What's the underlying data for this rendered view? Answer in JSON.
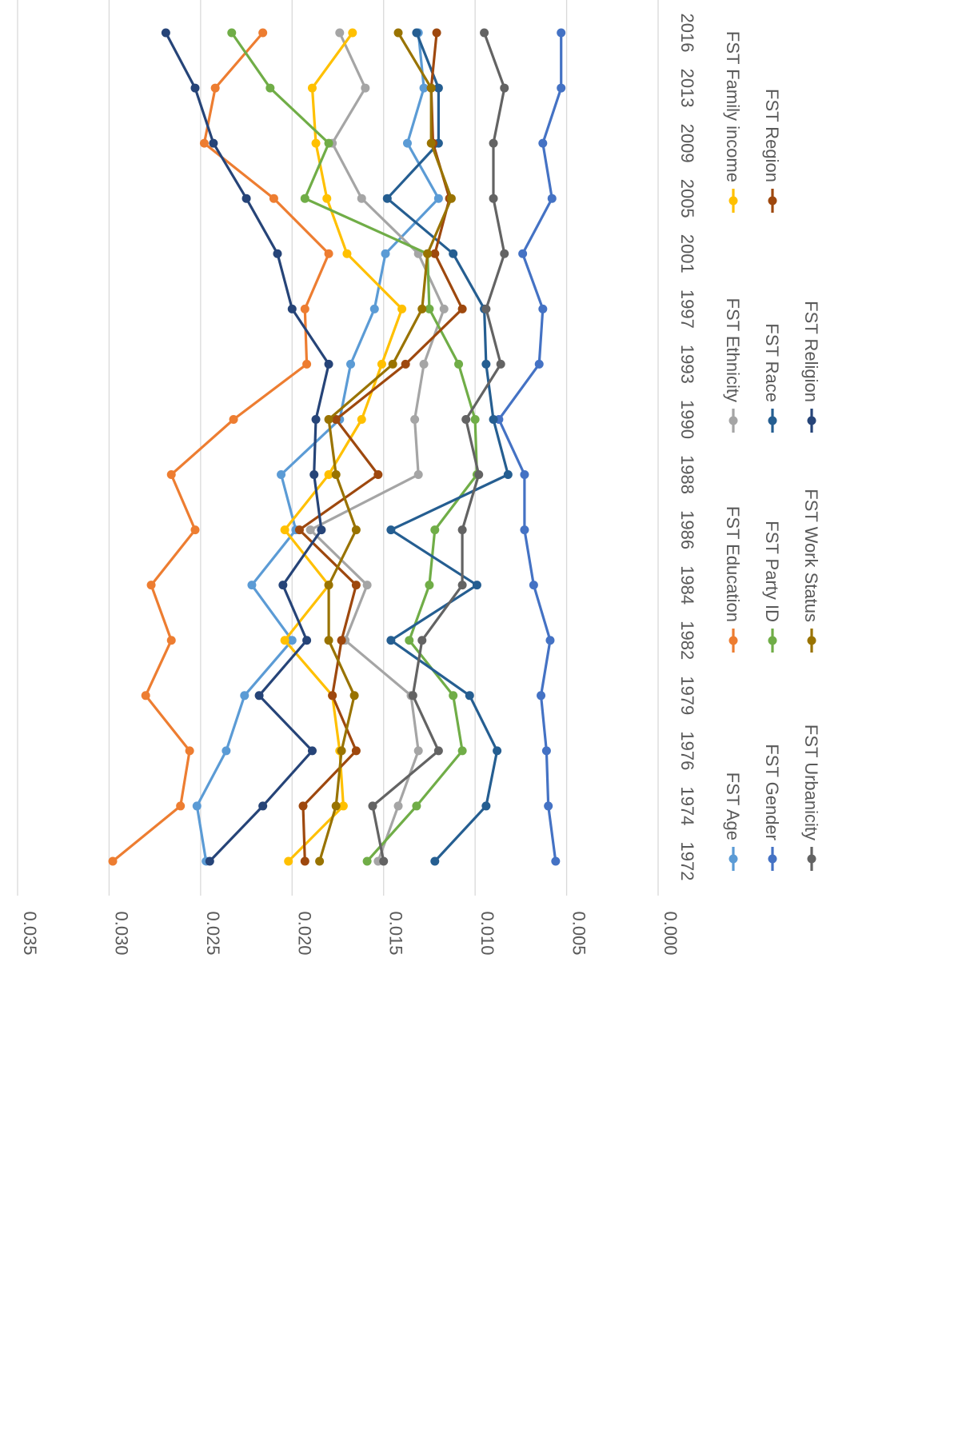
{
  "chart_data": {
    "type": "line",
    "orientation": "rotated-90-clockwise",
    "x": [
      "1972",
      "1974",
      "1976",
      "1979",
      "1982",
      "1984",
      "1986",
      "1988",
      "1990",
      "1993",
      "1997",
      "2001",
      "2005",
      "2009",
      "2013",
      "2016"
    ],
    "ylim": [
      0,
      0.035
    ],
    "yticks": [
      "0.000",
      "0.005",
      "0.010",
      "0.015",
      "0.020",
      "0.025",
      "0.030",
      "0.035"
    ],
    "grid": true,
    "legend_position": "bottom",
    "series": [
      {
        "name": "FST Age",
        "color": "#5B9BD5",
        "values": [
          0.0247,
          0.0252,
          0.0236,
          0.0226,
          0.02,
          0.0222,
          0.0198,
          0.0206,
          0.0174,
          0.0168,
          0.0155,
          0.0149,
          0.012,
          0.0137,
          0.0128,
          0.0131
        ]
      },
      {
        "name": "FST Education",
        "color": "#ED7D31",
        "values": [
          0.0298,
          0.0261,
          0.0256,
          0.028,
          0.0266,
          0.0277,
          0.0253,
          0.0266,
          0.0232,
          0.0192,
          0.0193,
          0.018,
          0.021,
          0.0248,
          0.0242,
          0.0216
        ]
      },
      {
        "name": "FST Ethnicity",
        "color": "#A5A5A5",
        "values": [
          0.0153,
          0.0142,
          0.0131,
          0.0135,
          0.0171,
          0.0159,
          0.019,
          0.0131,
          0.0133,
          0.0128,
          0.0117,
          0.0131,
          0.0162,
          0.0178,
          0.016,
          0.0174
        ]
      },
      {
        "name": "FST Family income",
        "color": "#FFC000",
        "values": [
          0.0202,
          0.0172,
          0.0174,
          0.0178,
          0.0204,
          0.018,
          0.0204,
          0.018,
          0.0162,
          0.0151,
          0.014,
          0.017,
          0.0181,
          0.0187,
          0.0189,
          0.0167
        ]
      },
      {
        "name": "FST Gender",
        "color": "#4472C4",
        "values": [
          0.0056,
          0.006,
          0.0061,
          0.0064,
          0.0059,
          0.0068,
          0.0073,
          0.0073,
          0.0087,
          0.0065,
          0.0063,
          0.0074,
          0.0058,
          0.0063,
          0.0053,
          0.0053
        ]
      },
      {
        "name": "FST Party ID",
        "color": "#70AD47",
        "values": [
          0.0159,
          0.0132,
          0.0107,
          0.0112,
          0.0136,
          0.0125,
          0.0122,
          0.0099,
          0.01,
          0.0109,
          0.0125,
          0.0126,
          0.0193,
          0.018,
          0.0212,
          0.0233
        ]
      },
      {
        "name": "FST Race",
        "color": "#255E91",
        "values": [
          0.0122,
          0.0094,
          0.0088,
          0.0103,
          0.0146,
          0.0099,
          0.0146,
          0.0082,
          0.009,
          0.0094,
          0.0095,
          0.0112,
          0.0148,
          0.012,
          0.012,
          0.0132
        ]
      },
      {
        "name": "FST Region",
        "color": "#9E480E",
        "values": [
          0.0193,
          0.0194,
          0.0165,
          0.0178,
          0.0173,
          0.0165,
          0.0196,
          0.0153,
          0.0176,
          0.0138,
          0.0107,
          0.0122,
          0.0114,
          0.0123,
          0.0124,
          0.0121
        ]
      },
      {
        "name": "FST Urbanicity",
        "color": "#636363",
        "values": [
          0.015,
          0.0156,
          0.012,
          0.0134,
          0.0129,
          0.0107,
          0.0107,
          0.0098,
          0.0105,
          0.0086,
          0.0094,
          0.0084,
          0.009,
          0.009,
          0.0084,
          0.0095
        ]
      },
      {
        "name": "FST Work Status",
        "color": "#997300",
        "values": [
          0.0185,
          0.0176,
          0.0173,
          0.0166,
          0.018,
          0.018,
          0.0165,
          0.0176,
          0.018,
          0.0145,
          0.0129,
          0.0126,
          0.0113,
          0.0124,
          0.0124,
          0.0142
        ]
      },
      {
        "name": "FST Religion",
        "color": "#264478",
        "values": [
          0.0245,
          0.0216,
          0.0189,
          0.0218,
          0.0192,
          0.0205,
          0.0184,
          0.0188,
          0.0187,
          0.018,
          0.02,
          0.0208,
          0.0225,
          0.0243,
          0.0253,
          0.0269
        ]
      }
    ]
  }
}
